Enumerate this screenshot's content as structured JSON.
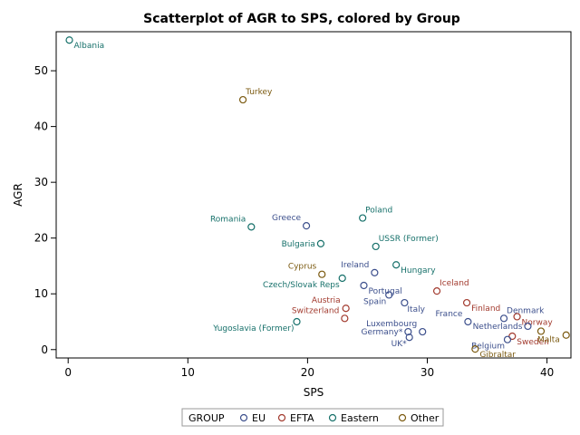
{
  "chart_data": {
    "type": "scatter",
    "title": "Scatterplot of AGR to SPS, colored by Group",
    "xlabel": "SPS",
    "ylabel": "AGR",
    "xlim": [
      -1,
      42
    ],
    "ylim": [
      -1.5,
      57
    ],
    "xticks": [
      0,
      10,
      20,
      30,
      40
    ],
    "yticks": [
      0,
      10,
      20,
      30,
      40,
      50
    ],
    "legend": {
      "title": "GROUP",
      "position": "bottom",
      "entries": [
        {
          "name": "EU",
          "color": "#3c4f8c"
        },
        {
          "name": "EFTA",
          "color": "#a23a2e"
        },
        {
          "name": "Eastern",
          "color": "#16706a"
        },
        {
          "name": "Other",
          "color": "#7b5a10"
        }
      ]
    },
    "colors": {
      "EU": "#3c4f8c",
      "EFTA": "#a23a2e",
      "Eastern": "#16706a",
      "Other": "#7b5a10"
    },
    "points": [
      {
        "label": "Albania",
        "x": 0.1,
        "y": 55.5,
        "group": "Eastern",
        "anchor": "right"
      },
      {
        "label": "Turkey",
        "x": 14.6,
        "y": 44.8,
        "group": "Other",
        "anchor": "above"
      },
      {
        "label": "Poland",
        "x": 24.6,
        "y": 23.6,
        "group": "Eastern",
        "anchor": "above-right"
      },
      {
        "label": "Romania",
        "x": 15.3,
        "y": 22.0,
        "group": "Eastern",
        "anchor": "above-left"
      },
      {
        "label": "Greece",
        "x": 19.9,
        "y": 22.2,
        "group": "EU",
        "anchor": "above-left"
      },
      {
        "label": "Bulgaria",
        "x": 21.1,
        "y": 19.0,
        "group": "Eastern",
        "anchor": "left"
      },
      {
        "label": "USSR (Former)",
        "x": 25.7,
        "y": 18.5,
        "group": "Eastern",
        "anchor": "above-right"
      },
      {
        "label": "Hungary",
        "x": 27.4,
        "y": 15.2,
        "group": "Eastern",
        "anchor": "right"
      },
      {
        "label": "Cyprus",
        "x": 21.2,
        "y": 13.5,
        "group": "Other",
        "anchor": "above-left"
      },
      {
        "label": "Ireland",
        "x": 25.6,
        "y": 13.8,
        "group": "EU",
        "anchor": "above-left"
      },
      {
        "label": "Czech/Slovak Reps",
        "x": 22.9,
        "y": 12.8,
        "group": "Eastern",
        "anchor": "below-left"
      },
      {
        "label": "Portugal",
        "x": 24.7,
        "y": 11.5,
        "group": "EU",
        "anchor": "right"
      },
      {
        "label": "Iceland",
        "x": 30.8,
        "y": 10.5,
        "group": "EFTA",
        "anchor": "above-right"
      },
      {
        "label": "Spain",
        "x": 26.8,
        "y": 9.8,
        "group": "EU",
        "anchor": "below-left"
      },
      {
        "label": "Finland",
        "x": 33.3,
        "y": 8.4,
        "group": "EFTA",
        "anchor": "right"
      },
      {
        "label": "Austria",
        "x": 23.2,
        "y": 7.4,
        "group": "EFTA",
        "anchor": "above-left"
      },
      {
        "label": "Italy",
        "x": 28.1,
        "y": 8.4,
        "group": "EU",
        "anchor": "below-right"
      },
      {
        "label": "Switzerland",
        "x": 23.1,
        "y": 5.6,
        "group": "EFTA",
        "anchor": "above-left"
      },
      {
        "label": "Denmark",
        "x": 36.4,
        "y": 5.6,
        "group": "EU",
        "anchor": "above-right"
      },
      {
        "label": "Norway",
        "x": 37.5,
        "y": 5.9,
        "group": "EFTA",
        "anchor": "right"
      },
      {
        "label": "France",
        "x": 33.4,
        "y": 5.0,
        "group": "EU",
        "anchor": "above-left"
      },
      {
        "label": "Netherlands",
        "x": 38.4,
        "y": 4.2,
        "group": "EU",
        "anchor": "left"
      },
      {
        "label": "Yugoslavia (Former)",
        "x": 19.1,
        "y": 5.0,
        "group": "Eastern",
        "anchor": "below-left"
      },
      {
        "label": "Luxembourg",
        "x": 29.6,
        "y": 3.2,
        "group": "EU",
        "anchor": "above-left"
      },
      {
        "label": "Germany*",
        "x": 28.4,
        "y": 3.2,
        "group": "EU",
        "anchor": "left"
      },
      {
        "label": "Sweden",
        "x": 37.1,
        "y": 2.4,
        "group": "EFTA",
        "anchor": "right"
      },
      {
        "label": "Malta",
        "x": 39.5,
        "y": 3.3,
        "group": "Other",
        "anchor": "below"
      },
      {
        "label": "Belgium",
        "x": 36.7,
        "y": 1.8,
        "group": "EU",
        "anchor": "below-left"
      },
      {
        "label": "UK*",
        "x": 28.5,
        "y": 2.2,
        "group": "EU",
        "anchor": "below-left"
      },
      {
        "label": "",
        "x": 41.6,
        "y": 2.6,
        "group": "Other",
        "anchor": "none"
      },
      {
        "label": "Gibraltar",
        "x": 34.0,
        "y": 0.1,
        "group": "Other",
        "anchor": "right"
      }
    ]
  }
}
